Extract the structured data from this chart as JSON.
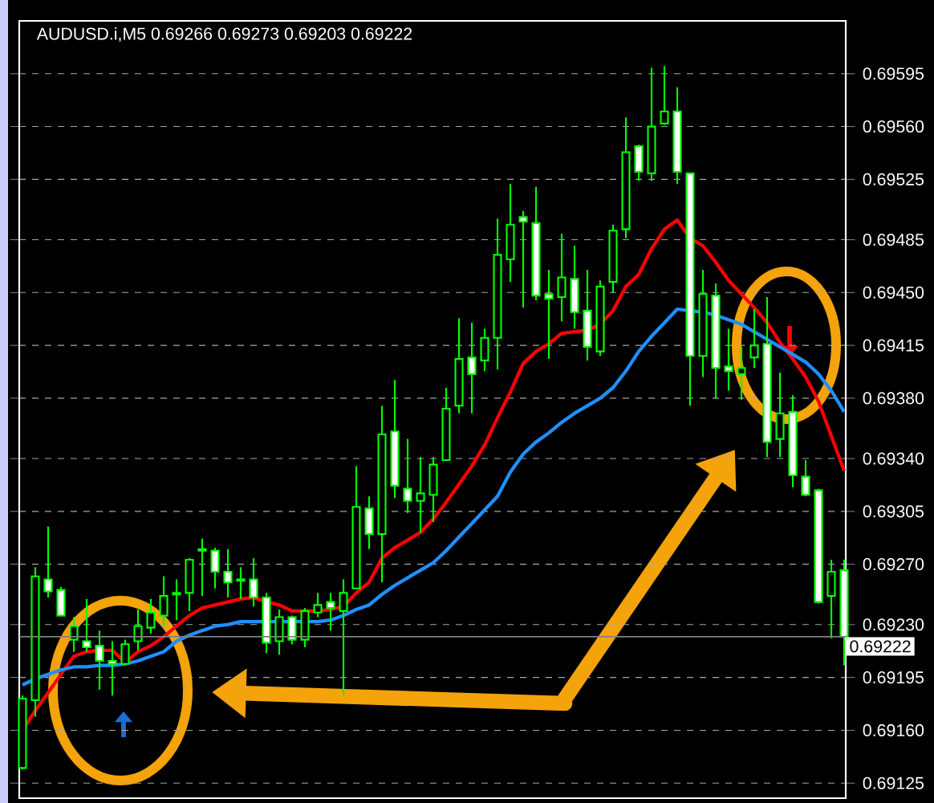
{
  "chart_data": {
    "type": "candlestick",
    "title": "AUDUSD.i,M5  0.69266 0.69273 0.69203 0.69222",
    "color": "#00ff00",
    "categories": [
      null,
      null,
      null,
      null,
      null,
      null,
      null,
      null,
      null,
      null,
      null,
      null,
      null,
      null,
      null,
      null,
      null,
      null,
      null,
      null,
      null,
      null,
      null,
      null,
      null,
      null,
      null,
      null,
      null,
      null,
      null,
      null,
      null,
      null,
      null,
      null,
      null,
      null,
      null,
      null,
      null,
      null,
      null,
      null,
      null,
      null,
      null,
      null,
      null,
      null,
      null,
      null,
      null,
      null,
      null,
      null,
      null,
      null,
      null,
      null,
      null,
      null,
      null,
      null,
      null
    ],
    "ohlc": [
      [
        0.69135,
        0.69183,
        0.69134,
        0.69181
      ],
      [
        0.6918,
        0.69268,
        0.69169,
        0.69262
      ],
      [
        0.6926,
        0.69295,
        0.69248,
        0.69252
      ],
      [
        0.69253,
        0.69255,
        0.69236,
        0.69236
      ],
      [
        0.6922,
        0.69235,
        0.69212,
        0.69229
      ],
      [
        0.69219,
        0.69247,
        0.69212,
        0.69215
      ],
      [
        0.69216,
        0.69226,
        0.69187,
        0.69206
      ],
      [
        0.69206,
        0.69219,
        0.69183,
        0.69204
      ],
      [
        0.69204,
        0.6922,
        0.69203,
        0.69217
      ],
      [
        0.69219,
        0.6924,
        0.69213,
        0.69229
      ],
      [
        0.69228,
        0.69247,
        0.69224,
        0.69238
      ],
      [
        0.69236,
        0.69262,
        0.69229,
        0.69249
      ],
      [
        0.6925,
        0.6926,
        0.69233,
        0.69251
      ],
      [
        0.69251,
        0.69274,
        0.69239,
        0.69273
      ],
      [
        0.69279,
        0.69287,
        0.69249,
        0.6928
      ],
      [
        0.69279,
        0.69281,
        0.69254,
        0.69265
      ],
      [
        0.69265,
        0.6928,
        0.69248,
        0.69258
      ],
      [
        0.6926,
        0.69268,
        0.69247,
        0.69259
      ],
      [
        0.6926,
        0.69274,
        0.69242,
        0.69248
      ],
      [
        0.69248,
        0.69251,
        0.69211,
        0.69218
      ],
      [
        0.69219,
        0.6924,
        0.6921,
        0.69235
      ],
      [
        0.69235,
        0.69236,
        0.69217,
        0.6922
      ],
      [
        0.6922,
        0.69241,
        0.69215,
        0.69239
      ],
      [
        0.69238,
        0.69251,
        0.69235,
        0.69243
      ],
      [
        0.69245,
        0.69251,
        0.69226,
        0.69241
      ],
      [
        0.69239,
        0.6926,
        0.69183,
        0.69251
      ],
      [
        0.69254,
        0.69335,
        0.69254,
        0.69308
      ],
      [
        0.69307,
        0.69315,
        0.6928,
        0.6929
      ],
      [
        0.6929,
        0.69375,
        0.69258,
        0.69356
      ],
      [
        0.69358,
        0.69392,
        0.69314,
        0.69322
      ],
      [
        0.6932,
        0.69353,
        0.69304,
        0.69312
      ],
      [
        0.69312,
        0.69341,
        0.69291,
        0.69317
      ],
      [
        0.69316,
        0.69341,
        0.69298,
        0.69336
      ],
      [
        0.69339,
        0.69387,
        0.69339,
        0.69373
      ],
      [
        0.69375,
        0.69433,
        0.6937,
        0.69406
      ],
      [
        0.69407,
        0.6943,
        0.6937,
        0.69396
      ],
      [
        0.69405,
        0.69426,
        0.69398,
        0.6942
      ],
      [
        0.6942,
        0.69499,
        0.69399,
        0.69475
      ],
      [
        0.69472,
        0.69522,
        0.69457,
        0.69495
      ],
      [
        0.695,
        0.69504,
        0.6944,
        0.69497
      ],
      [
        0.69496,
        0.6952,
        0.69445,
        0.69448
      ],
      [
        0.69449,
        0.69465,
        0.69406,
        0.69446
      ],
      [
        0.69447,
        0.69489,
        0.69431,
        0.6946
      ],
      [
        0.69459,
        0.69481,
        0.69426,
        0.69437
      ],
      [
        0.69438,
        0.69465,
        0.69405,
        0.69414
      ],
      [
        0.69411,
        0.69458,
        0.69408,
        0.69454
      ],
      [
        0.69457,
        0.69495,
        0.6945,
        0.69491
      ],
      [
        0.69492,
        0.69566,
        0.69486,
        0.69543
      ],
      [
        0.69547,
        0.69548,
        0.69524,
        0.6953
      ],
      [
        0.69529,
        0.69599,
        0.69524,
        0.6956
      ],
      [
        0.69562,
        0.696,
        0.69561,
        0.6957
      ],
      [
        0.6957,
        0.69586,
        0.69522,
        0.6953
      ],
      [
        0.69529,
        0.69529,
        0.69375,
        0.69408
      ],
      [
        0.69408,
        0.69465,
        0.69394,
        0.69449
      ],
      [
        0.69448,
        0.69456,
        0.6938,
        0.694
      ],
      [
        0.69401,
        0.69426,
        0.69385,
        0.69398
      ],
      [
        0.69396,
        0.69414,
        0.69379,
        0.694
      ],
      [
        0.69407,
        0.69439,
        0.694,
        0.69415
      ],
      [
        0.69416,
        0.69447,
        0.69341,
        0.69351
      ],
      [
        0.69353,
        0.69397,
        0.69341,
        0.6937
      ],
      [
        0.69371,
        0.69382,
        0.69321,
        0.69329
      ],
      [
        0.69328,
        0.69339,
        0.69315,
        0.69316
      ],
      [
        0.69319,
        0.6932,
        0.69244,
        0.69245
      ],
      [
        0.69249,
        0.69273,
        0.69221,
        0.69265
      ],
      [
        0.69266,
        0.69273,
        0.69203,
        0.69222
      ]
    ],
    "series": [
      {
        "type": "line",
        "color": "#ff0000",
        "values": [
          0.6916,
          0.69173,
          0.69185,
          0.69197,
          0.69209,
          0.69212,
          0.69213,
          0.69213,
          0.69205,
          0.69212,
          0.69216,
          0.69222,
          0.69229,
          0.69236,
          0.69241,
          0.69243,
          0.69245,
          0.69247,
          0.69248,
          0.69245,
          0.69243,
          0.69239,
          0.69239,
          0.69239,
          0.6924,
          0.69242,
          0.69251,
          0.69258,
          0.69274,
          0.69281,
          0.69286,
          0.69291,
          0.693,
          0.69311,
          0.69323,
          0.69335,
          0.69349,
          0.69367,
          0.69384,
          0.69403,
          0.69411,
          0.69416,
          0.69423,
          0.69424,
          0.69425,
          0.69429,
          0.69438,
          0.69454,
          0.69462,
          0.69479,
          0.69492,
          0.69498,
          0.69486,
          0.69481,
          0.6947,
          0.69458,
          0.69449,
          0.6944,
          0.6943,
          0.69417,
          0.69406,
          0.69394,
          0.69378,
          0.69355,
          0.69332
        ]
      },
      {
        "type": "line",
        "color": "#1e90ff",
        "values": [
          0.6919,
          0.69194,
          0.69197,
          0.692,
          0.69202,
          0.69202,
          0.69203,
          0.69203,
          0.69204,
          0.69206,
          0.69209,
          0.69212,
          0.69219,
          0.69223,
          0.69226,
          0.69229,
          0.6923,
          0.69232,
          0.69232,
          0.69232,
          0.69232,
          0.69232,
          0.69232,
          0.69232,
          0.69233,
          0.69236,
          0.6924,
          0.69243,
          0.6925,
          0.69256,
          0.69261,
          0.69266,
          0.69271,
          0.69279,
          0.69288,
          0.69297,
          0.69306,
          0.69315,
          0.69331,
          0.69343,
          0.69351,
          0.69357,
          0.69364,
          0.6937,
          0.69375,
          0.6938,
          0.69387,
          0.69398,
          0.69411,
          0.69421,
          0.6943,
          0.69439,
          0.69438,
          0.69437,
          0.69435,
          0.69432,
          0.69429,
          0.69424,
          0.69419,
          0.69414,
          0.69409,
          0.69404,
          0.69396,
          0.69385,
          0.69371
        ]
      }
    ],
    "ylim": [
      0.69115,
      0.6963
    ],
    "yticks": [
      0.69125,
      {
        "value": 0.6916,
        "label": "0.69160"
      },
      0.69195,
      {
        "value": 0.6923,
        "label": "0.69230"
      },
      {
        "value": 0.6927,
        "label": "0.69270"
      },
      0.69305,
      {
        "value": 0.6934,
        "label": "0.69340"
      },
      {
        "value": 0.6938,
        "label": "0.69380"
      },
      0.69415,
      {
        "value": 0.6945,
        "label": "0.69450"
      },
      0.69485,
      0.69525,
      {
        "value": 0.6956,
        "label": "0.69560"
      },
      0.69595
    ],
    "grid": "y",
    "tick_labels": "y",
    "ref_lines": [
      {
        "axis": "y",
        "value": 0.69222,
        "label": "0.69222",
        "color": "#808080"
      }
    ]
  }
}
